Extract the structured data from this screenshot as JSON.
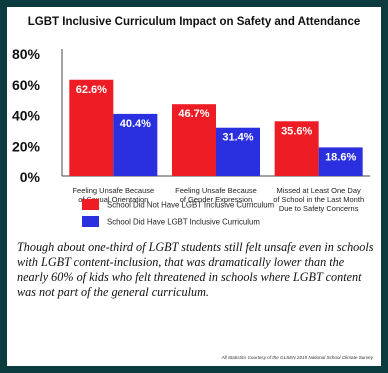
{
  "chart_data": {
    "type": "bar",
    "title": "LGBT Inclusive Curriculum Impact on Safety and Attendance",
    "categories": [
      [
        "Feeling Unsafe Because",
        "of Sexual Orientation"
      ],
      [
        "Feeling Unsafe Because",
        "of Gender Expression"
      ],
      [
        "Missed at Least One Day",
        "of School in the Last Month",
        "Due to Safety Concerns"
      ]
    ],
    "series": [
      {
        "name": "School Did Not Have LGBT Inclusive Curriculum",
        "color": "#ee1c24",
        "values": [
          62.6,
          46.7,
          35.6
        ],
        "labels": [
          "62.6%",
          "46.7%",
          "35.6%"
        ]
      },
      {
        "name": "School Did Have LGBT Inclusive Curriculum",
        "color": "#2a2fe0",
        "values": [
          40.4,
          31.4,
          18.6
        ],
        "labels": [
          "40.4%",
          "31.4%",
          "18.6%"
        ]
      }
    ],
    "yticks": [
      0,
      20,
      40,
      60,
      80
    ],
    "ytick_labels": [
      "0%",
      "20%",
      "40%",
      "60%",
      "80%"
    ],
    "ylim": [
      0,
      80
    ],
    "grid": false,
    "legend": "bottom"
  },
  "caption": "Though about one-third of LGBT students still felt unsafe even in schools with LGBT content-inclusion, that was dramatically lower than the nearly 60% of kids who felt threatened in schools where LGBT content was not part of the general curriculum.",
  "source": "All Statistics Courtesy of the GLSEN 2015 National School Climate Survey"
}
